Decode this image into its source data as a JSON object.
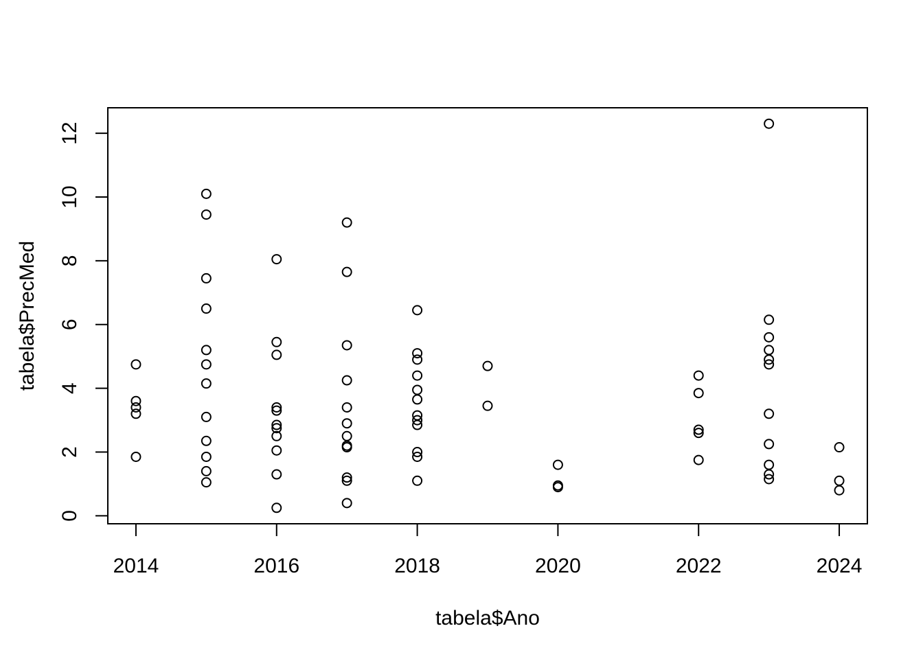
{
  "chart_data": {
    "type": "scatter",
    "title": "",
    "xlabel": "tabela$Ano",
    "ylabel": "tabela$PrecMed",
    "xlim": [
      2013.6,
      2024.4
    ],
    "ylim": [
      -0.25,
      12.8
    ],
    "xticks": [
      2014,
      2016,
      2018,
      2020,
      2022,
      2024
    ],
    "yticks": [
      0,
      2,
      4,
      6,
      8,
      10,
      12
    ],
    "marker": "open-circle",
    "grid": false,
    "legend": "none",
    "points": [
      {
        "x": 2014,
        "y": 4.75
      },
      {
        "x": 2014,
        "y": 3.6
      },
      {
        "x": 2014,
        "y": 3.4
      },
      {
        "x": 2014,
        "y": 3.2
      },
      {
        "x": 2014,
        "y": 1.85
      },
      {
        "x": 2015,
        "y": 10.1
      },
      {
        "x": 2015,
        "y": 9.45
      },
      {
        "x": 2015,
        "y": 7.45
      },
      {
        "x": 2015,
        "y": 6.5
      },
      {
        "x": 2015,
        "y": 5.2
      },
      {
        "x": 2015,
        "y": 4.75
      },
      {
        "x": 2015,
        "y": 4.15
      },
      {
        "x": 2015,
        "y": 3.1
      },
      {
        "x": 2015,
        "y": 2.35
      },
      {
        "x": 2015,
        "y": 1.85
      },
      {
        "x": 2015,
        "y": 1.4
      },
      {
        "x": 2015,
        "y": 1.05
      },
      {
        "x": 2016,
        "y": 8.05
      },
      {
        "x": 2016,
        "y": 5.45
      },
      {
        "x": 2016,
        "y": 5.05
      },
      {
        "x": 2016,
        "y": 3.4
      },
      {
        "x": 2016,
        "y": 3.3
      },
      {
        "x": 2016,
        "y": 2.85
      },
      {
        "x": 2016,
        "y": 2.75
      },
      {
        "x": 2016,
        "y": 2.5
      },
      {
        "x": 2016,
        "y": 2.05
      },
      {
        "x": 2016,
        "y": 1.3
      },
      {
        "x": 2016,
        "y": 0.25
      },
      {
        "x": 2017,
        "y": 9.2
      },
      {
        "x": 2017,
        "y": 7.65
      },
      {
        "x": 2017,
        "y": 5.35
      },
      {
        "x": 2017,
        "y": 4.25
      },
      {
        "x": 2017,
        "y": 3.4
      },
      {
        "x": 2017,
        "y": 2.9
      },
      {
        "x": 2017,
        "y": 2.5
      },
      {
        "x": 2017,
        "y": 2.2
      },
      {
        "x": 2017,
        "y": 2.15
      },
      {
        "x": 2017,
        "y": 1.2
      },
      {
        "x": 2017,
        "y": 1.1
      },
      {
        "x": 2017,
        "y": 0.4
      },
      {
        "x": 2018,
        "y": 6.45
      },
      {
        "x": 2018,
        "y": 5.1
      },
      {
        "x": 2018,
        "y": 4.9
      },
      {
        "x": 2018,
        "y": 4.4
      },
      {
        "x": 2018,
        "y": 3.95
      },
      {
        "x": 2018,
        "y": 3.65
      },
      {
        "x": 2018,
        "y": 3.15
      },
      {
        "x": 2018,
        "y": 3.0
      },
      {
        "x": 2018,
        "y": 2.85
      },
      {
        "x": 2018,
        "y": 2.0
      },
      {
        "x": 2018,
        "y": 1.85
      },
      {
        "x": 2018,
        "y": 1.1
      },
      {
        "x": 2019,
        "y": 4.7
      },
      {
        "x": 2019,
        "y": 3.45
      },
      {
        "x": 2020,
        "y": 1.6
      },
      {
        "x": 2020,
        "y": 0.95
      },
      {
        "x": 2020,
        "y": 0.9
      },
      {
        "x": 2022,
        "y": 4.4
      },
      {
        "x": 2022,
        "y": 3.85
      },
      {
        "x": 2022,
        "y": 2.7
      },
      {
        "x": 2022,
        "y": 2.6
      },
      {
        "x": 2022,
        "y": 1.75
      },
      {
        "x": 2023,
        "y": 12.3
      },
      {
        "x": 2023,
        "y": 6.15
      },
      {
        "x": 2023,
        "y": 5.6
      },
      {
        "x": 2023,
        "y": 5.2
      },
      {
        "x": 2023,
        "y": 4.9
      },
      {
        "x": 2023,
        "y": 4.75
      },
      {
        "x": 2023,
        "y": 3.2
      },
      {
        "x": 2023,
        "y": 2.25
      },
      {
        "x": 2023,
        "y": 1.6
      },
      {
        "x": 2023,
        "y": 1.3
      },
      {
        "x": 2023,
        "y": 1.15
      },
      {
        "x": 2024,
        "y": 2.15
      },
      {
        "x": 2024,
        "y": 1.1
      },
      {
        "x": 2024,
        "y": 0.8
      }
    ]
  }
}
